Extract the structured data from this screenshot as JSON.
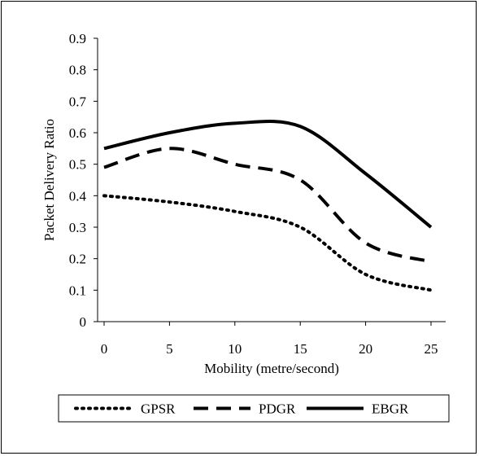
{
  "chart_data": {
    "type": "line",
    "title": "",
    "xlabel": "Mobility (metre/second)",
    "ylabel": "Packet Delivery Ratio",
    "x": [
      0,
      5,
      10,
      15,
      20,
      25
    ],
    "ylim": [
      0,
      0.9
    ],
    "yticks": [
      "0",
      "0.1",
      "0.2",
      "0.3",
      "0.4",
      "0.5",
      "0.6",
      "0.7",
      "0.8",
      "0.9"
    ],
    "xticks": [
      "0",
      "5",
      "10",
      "15",
      "20",
      "25"
    ],
    "grid": false,
    "legend_position": "bottom",
    "series": [
      {
        "name": "GPSR",
        "values": [
          0.4,
          0.38,
          0.35,
          0.3,
          0.15,
          0.1
        ],
        "style": "dotted",
        "color": "#000000"
      },
      {
        "name": "PDGR",
        "values": [
          0.49,
          0.55,
          0.5,
          0.45,
          0.25,
          0.19
        ],
        "style": "dashed",
        "color": "#000000"
      },
      {
        "name": "EBGR",
        "values": [
          0.55,
          0.6,
          0.63,
          0.62,
          0.47,
          0.3
        ],
        "style": "solid",
        "color": "#000000"
      }
    ]
  }
}
